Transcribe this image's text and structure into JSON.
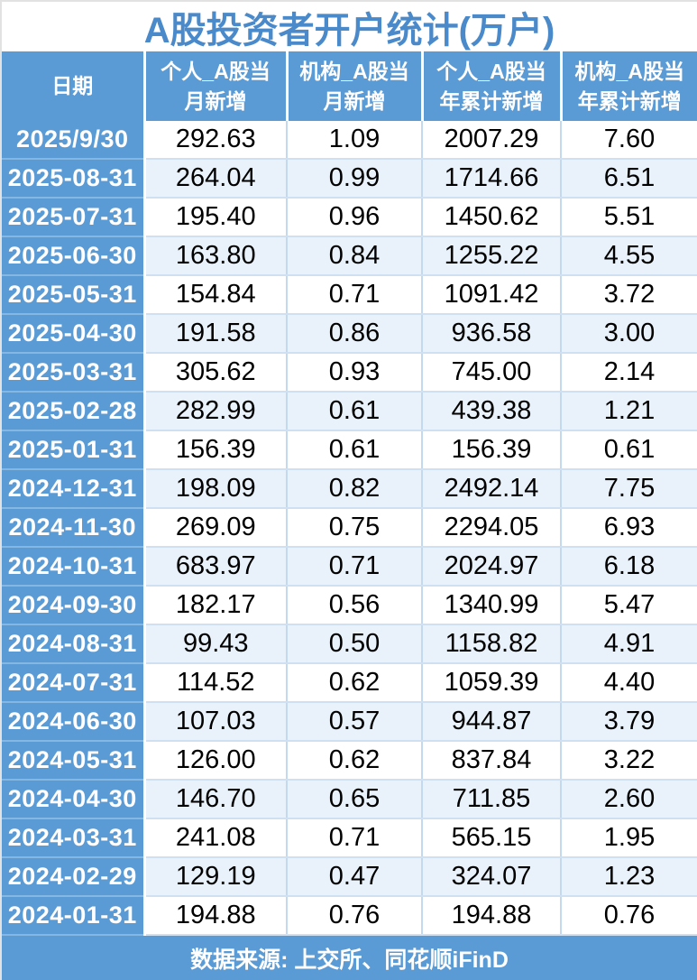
{
  "title": "A股投资者开户统计(万户)",
  "footer": {
    "source": "数据来源: 上交所、同花顺iFinD"
  },
  "colors": {
    "header_blue": "#5b9bd5",
    "title_text_blue": "#4a8aca",
    "alt_row_bg": "#e9f1fa",
    "gridline": "#c3d9ee",
    "text_black": "#000000",
    "text_white": "#ffffff"
  },
  "table": {
    "header_labels": [
      "日期",
      "个人_A股当\n月新增",
      "机构_A股当\n月新增",
      "个人_A股当\n年累计新增",
      "机构_A股当\n年累计新增"
    ],
    "rows": [
      {
        "date": "2025/9/30",
        "values": [
          "292.63",
          "1.09",
          "2007.29",
          "7.60"
        ]
      },
      {
        "date": "2025-08-31",
        "values": [
          "264.04",
          "0.99",
          "1714.66",
          "6.51"
        ]
      },
      {
        "date": "2025-07-31",
        "values": [
          "195.40",
          "0.96",
          "1450.62",
          "5.51"
        ]
      },
      {
        "date": "2025-06-30",
        "values": [
          "163.80",
          "0.84",
          "1255.22",
          "4.55"
        ]
      },
      {
        "date": "2025-05-31",
        "values": [
          "154.84",
          "0.71",
          "1091.42",
          "3.72"
        ]
      },
      {
        "date": "2025-04-30",
        "values": [
          "191.58",
          "0.86",
          "936.58",
          "3.00"
        ]
      },
      {
        "date": "2025-03-31",
        "values": [
          "305.62",
          "0.93",
          "745.00",
          "2.14"
        ]
      },
      {
        "date": "2025-02-28",
        "values": [
          "282.99",
          "0.61",
          "439.38",
          "1.21"
        ]
      },
      {
        "date": "2025-01-31",
        "values": [
          "156.39",
          "0.61",
          "156.39",
          "0.61"
        ]
      },
      {
        "date": "2024-12-31",
        "values": [
          "198.09",
          "0.82",
          "2492.14",
          "7.75"
        ]
      },
      {
        "date": "2024-11-30",
        "values": [
          "269.09",
          "0.75",
          "2294.05",
          "6.93"
        ]
      },
      {
        "date": "2024-10-31",
        "values": [
          "683.97",
          "0.71",
          "2024.97",
          "6.18"
        ]
      },
      {
        "date": "2024-09-30",
        "values": [
          "182.17",
          "0.56",
          "1340.99",
          "5.47"
        ]
      },
      {
        "date": "2024-08-31",
        "values": [
          "99.43",
          "0.50",
          "1158.82",
          "4.91"
        ]
      },
      {
        "date": "2024-07-31",
        "values": [
          "114.52",
          "0.62",
          "1059.39",
          "4.40"
        ]
      },
      {
        "date": "2024-06-30",
        "values": [
          "107.03",
          "0.57",
          "944.87",
          "3.79"
        ]
      },
      {
        "date": "2024-05-31",
        "values": [
          "126.00",
          "0.62",
          "837.84",
          "3.22"
        ]
      },
      {
        "date": "2024-04-30",
        "values": [
          "146.70",
          "0.65",
          "711.85",
          "2.60"
        ]
      },
      {
        "date": "2024-03-31",
        "values": [
          "241.08",
          "0.71",
          "565.15",
          "1.95"
        ]
      },
      {
        "date": "2024-02-29",
        "values": [
          "129.19",
          "0.47",
          "324.07",
          "1.23"
        ]
      },
      {
        "date": "2024-01-31",
        "values": [
          "194.88",
          "0.76",
          "194.88",
          "0.76"
        ]
      }
    ]
  },
  "chart_data": {
    "type": "table",
    "title": "A股投资者开户统计(万户)",
    "columns": [
      "日期",
      "个人_A股当月新增",
      "机构_A股当月新增",
      "个人_A股当年累计新增",
      "机构_A股当年累计新增"
    ],
    "unit": "万户",
    "rows": [
      [
        "2025/9/30",
        292.63,
        1.09,
        2007.29,
        7.6
      ],
      [
        "2025-08-31",
        264.04,
        0.99,
        1714.66,
        6.51
      ],
      [
        "2025-07-31",
        195.4,
        0.96,
        1450.62,
        5.51
      ],
      [
        "2025-06-30",
        163.8,
        0.84,
        1255.22,
        4.55
      ],
      [
        "2025-05-31",
        154.84,
        0.71,
        1091.42,
        3.72
      ],
      [
        "2025-04-30",
        191.58,
        0.86,
        936.58,
        3.0
      ],
      [
        "2025-03-31",
        305.62,
        0.93,
        745.0,
        2.14
      ],
      [
        "2025-02-28",
        282.99,
        0.61,
        439.38,
        1.21
      ],
      [
        "2025-01-31",
        156.39,
        0.61,
        156.39,
        0.61
      ],
      [
        "2024-12-31",
        198.09,
        0.82,
        2492.14,
        7.75
      ],
      [
        "2024-11-30",
        269.09,
        0.75,
        2294.05,
        6.93
      ],
      [
        "2024-10-31",
        683.97,
        0.71,
        2024.97,
        6.18
      ],
      [
        "2024-09-30",
        182.17,
        0.56,
        1340.99,
        5.47
      ],
      [
        "2024-08-31",
        99.43,
        0.5,
        1158.82,
        4.91
      ],
      [
        "2024-07-31",
        114.52,
        0.62,
        1059.39,
        4.4
      ],
      [
        "2024-06-30",
        107.03,
        0.57,
        944.87,
        3.79
      ],
      [
        "2024-05-31",
        126.0,
        0.62,
        837.84,
        3.22
      ],
      [
        "2024-04-30",
        146.7,
        0.65,
        711.85,
        2.6
      ],
      [
        "2024-03-31",
        241.08,
        0.71,
        565.15,
        1.95
      ],
      [
        "2024-02-29",
        129.19,
        0.47,
        324.07,
        1.23
      ],
      [
        "2024-01-31",
        194.88,
        0.76,
        194.88,
        0.76
      ]
    ],
    "source_note": "数据来源: 上交所、同花顺iFinD"
  }
}
